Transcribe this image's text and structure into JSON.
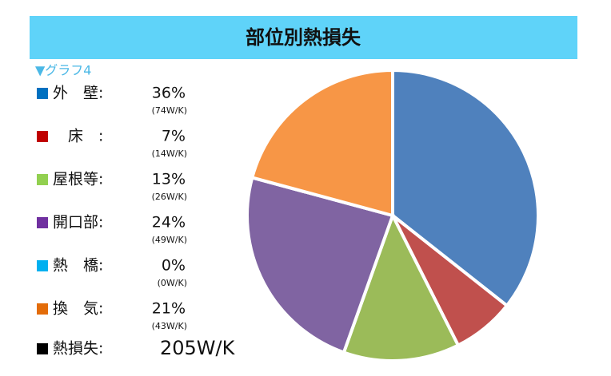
{
  "chart_data": {
    "type": "pie",
    "title": "部位別熱損失",
    "subtitle": "▼グラフ4",
    "categories": [
      "外　壁:",
      "　床　:",
      "屋根等:",
      "開口部:",
      "熱　橋:",
      "換　気:"
    ],
    "values": [
      36,
      7,
      13,
      24,
      0,
      21
    ],
    "value_labels": [
      "36%",
      "7%",
      "13%",
      "24%",
      "0%",
      "21%"
    ],
    "sublabels": [
      "(74W/K)",
      "(14W/K)",
      "(26W/K)",
      "(49W/K)",
      "(0W/K)",
      "(43W/K)"
    ],
    "colors": [
      "#4f81bd",
      "#c0504d",
      "#9bbb59",
      "#8064a2",
      "#4bacc6",
      "#f79646"
    ],
    "legend_colors": [
      "#0070c0",
      "#c00000",
      "#92d050",
      "#7030a0",
      "#00b0f0",
      "#e36c09"
    ],
    "total_name": "熱損失:",
    "total_label": "205W/K",
    "total_color": "#000000"
  }
}
